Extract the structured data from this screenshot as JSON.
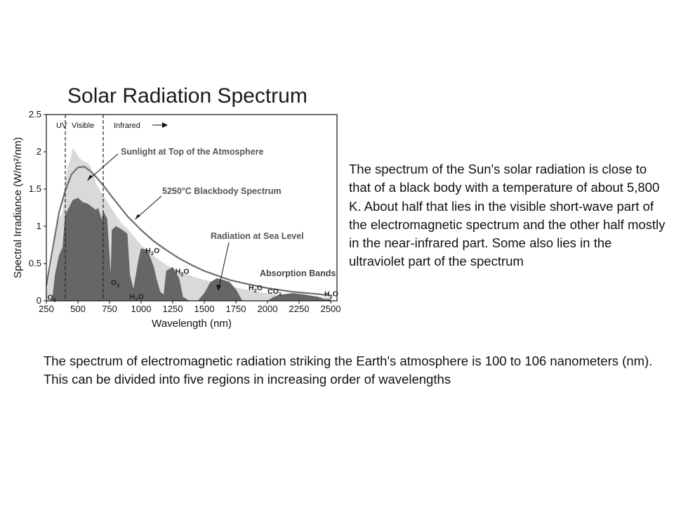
{
  "chart_data": {
    "type": "area",
    "title": "Solar Radiation Spectrum",
    "xlabel": "Wavelength (nm)",
    "ylabel": "Spectral Irradiance (W/m²/nm)",
    "xlim": [
      250,
      2550
    ],
    "ylim": [
      0,
      2.5
    ],
    "x_ticks": [
      "250",
      "500",
      "750",
      "1000",
      "1250",
      "1500",
      "1750",
      "2000",
      "2250",
      "2500"
    ],
    "y_ticks": [
      "0",
      "0.5",
      "1",
      "1.5",
      "2",
      "2.5"
    ],
    "regions": [
      {
        "label": "UV",
        "end_nm": 400
      },
      {
        "label": "Visible",
        "end_nm": 700
      },
      {
        "label": "Infrared",
        "end_nm": null
      }
    ],
    "series": [
      {
        "name": "Sunlight at Top of the Atmosphere",
        "color": "#d9d9d9",
        "x": [
          250,
          290,
          320,
          350,
          380,
          400,
          420,
          440,
          460,
          480,
          500,
          520,
          550,
          580,
          600,
          650,
          700,
          750,
          800,
          850,
          900,
          1000,
          1100,
          1200,
          1300,
          1400,
          1500,
          1600,
          1700,
          1800,
          2000,
          2200,
          2400,
          2500
        ],
        "values": [
          0.1,
          0.5,
          0.85,
          1.1,
          1.2,
          1.6,
          1.8,
          1.9,
          2.05,
          2.0,
          1.95,
          1.9,
          1.87,
          1.85,
          1.8,
          1.55,
          1.42,
          1.28,
          1.15,
          1.03,
          0.95,
          0.75,
          0.6,
          0.48,
          0.4,
          0.33,
          0.28,
          0.24,
          0.2,
          0.16,
          0.1,
          0.07,
          0.06,
          0.05
        ]
      },
      {
        "name": "5250°C Blackbody Spectrum",
        "color": "#6e6e6e",
        "x": [
          250,
          300,
          350,
          400,
          450,
          500,
          550,
          600,
          650,
          700,
          800,
          900,
          1000,
          1100,
          1200,
          1300,
          1400,
          1500,
          1600,
          1700,
          1800,
          2000,
          2200,
          2400,
          2500
        ],
        "values": [
          0.2,
          0.7,
          1.18,
          1.48,
          1.7,
          1.79,
          1.8,
          1.74,
          1.65,
          1.55,
          1.33,
          1.12,
          0.95,
          0.8,
          0.68,
          0.57,
          0.48,
          0.4,
          0.34,
          0.28,
          0.24,
          0.17,
          0.12,
          0.09,
          0.07
        ]
      },
      {
        "name": "Radiation at Sea Level",
        "color": "#666666",
        "x": [
          290,
          300,
          320,
          350,
          380,
          400,
          430,
          460,
          500,
          540,
          580,
          600,
          640,
          660,
          690,
          700,
          730,
          760,
          770,
          800,
          850,
          890,
          910,
          940,
          980,
          1000,
          1050,
          1100,
          1120,
          1150,
          1180,
          1200,
          1250,
          1300,
          1330,
          1380,
          1420,
          1450,
          1500,
          1550,
          1600,
          1650,
          1700,
          1750,
          1800,
          1850,
          1900,
          1950,
          2000,
          2050,
          2100,
          2200,
          2300,
          2400,
          2450,
          2500
        ],
        "values": [
          0.0,
          0.05,
          0.35,
          0.6,
          0.72,
          1.15,
          1.25,
          1.35,
          1.38,
          1.32,
          1.3,
          1.27,
          1.22,
          1.24,
          1.07,
          1.2,
          1.1,
          0.3,
          0.95,
          1.0,
          0.95,
          0.9,
          0.35,
          0.15,
          0.55,
          0.7,
          0.68,
          0.45,
          0.3,
          0.12,
          0.08,
          0.4,
          0.45,
          0.3,
          0.05,
          0.0,
          0.0,
          0.0,
          0.1,
          0.25,
          0.3,
          0.28,
          0.25,
          0.15,
          0.0,
          0.0,
          0.0,
          0.0,
          0.0,
          0.05,
          0.08,
          0.1,
          0.08,
          0.05,
          0.02,
          0.02
        ]
      }
    ],
    "annotations": [
      {
        "text": "Sunlight at Top of the Atmosphere",
        "style": "light"
      },
      {
        "text": "5250°C Blackbody Spectrum",
        "style": "light"
      },
      {
        "text": "Radiation at Sea Level",
        "style": "light"
      },
      {
        "text": "Absorption Bands",
        "style": "dark"
      }
    ],
    "absorbers": [
      {
        "main": "O",
        "sub": "3",
        "x_nm": 258,
        "y": 0.05
      },
      {
        "main": "O",
        "sub": "2",
        "x_nm": 762,
        "y": 0.25
      },
      {
        "main": "H",
        "sub": "2",
        "tail": "O",
        "x_nm": 1035,
        "y": 0.68
      },
      {
        "main": "H",
        "sub": "2",
        "tail": "O",
        "x_nm": 1270,
        "y": 0.4
      },
      {
        "main": "H",
        "sub": "2",
        "tail": "O",
        "x_nm": 910,
        "y": 0.06
      },
      {
        "main": "H",
        "sub": "2",
        "tail": "O",
        "x_nm": 1850,
        "y": 0.18
      },
      {
        "main": "CO",
        "sub": "2",
        "x_nm": 2000,
        "y": 0.13
      },
      {
        "main": "H",
        "sub": "2",
        "tail": "O",
        "x_nm": 2450,
        "y": 0.1
      }
    ],
    "absorbers_heading": "Absorption Bands"
  },
  "text_blocks": {
    "right": "The spectrum of the Sun's solar radiation is close to that of a black body with a temperature of about 5,800 K. About half that lies in the visible short-wave part of the electromagnetic spectrum and the other half mostly in the near-infrared part. Some also lies in the ultraviolet part of the spectrum",
    "bottom": "The spectrum of electromagnetic radiation striking the Earth's atmosphere is 100 to 106 nanometers (nm). This can be divided into five regions in increasing order of wavelengths"
  }
}
